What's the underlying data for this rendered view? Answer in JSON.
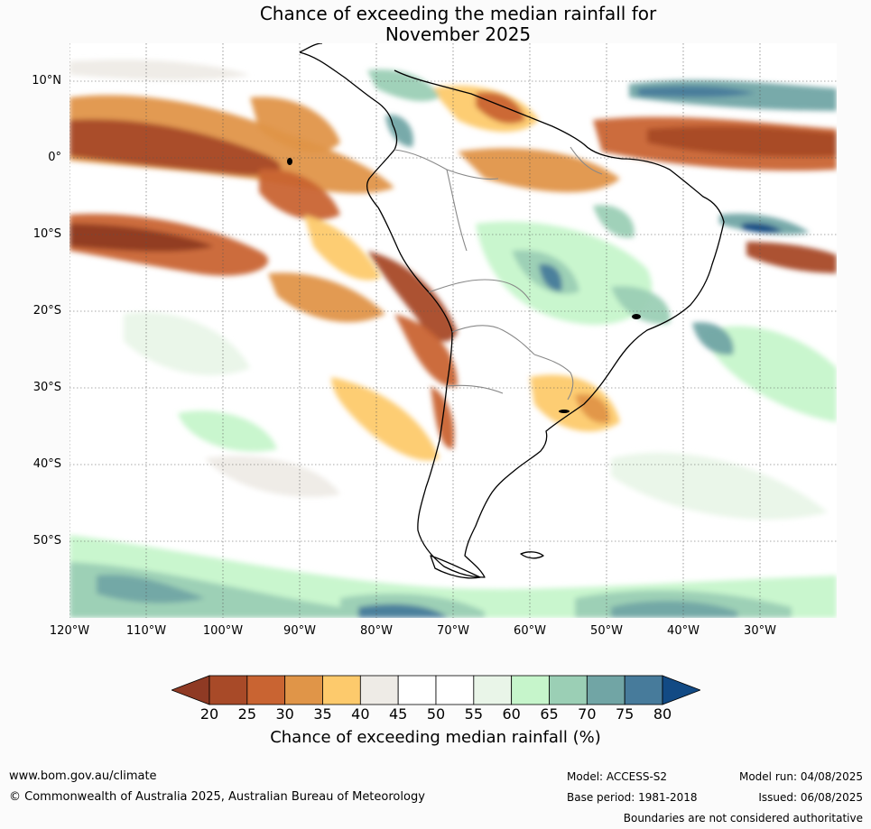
{
  "title": {
    "line1": "Chance of exceeding the median rainfall for",
    "line2": "November 2025"
  },
  "axes": {
    "lat_labels": [
      "10°N",
      "0°",
      "10°S",
      "20°S",
      "30°S",
      "40°S",
      "50°S"
    ],
    "lon_labels": [
      "120°W",
      "110°W",
      "100°W",
      "90°W",
      "80°W",
      "70°W",
      "60°W",
      "50°W",
      "40°W",
      "30°W"
    ],
    "extent": {
      "lon_min": -120,
      "lon_max": -20,
      "lat_min": -60,
      "lat_max": 15
    }
  },
  "legend": {
    "ticks": [
      "20",
      "25",
      "30",
      "35",
      "40",
      "45",
      "50",
      "55",
      "60",
      "65",
      "70",
      "75",
      "80"
    ],
    "colors": [
      "#8f3a24",
      "#a84a28",
      "#c96432",
      "#e09548",
      "#fdca6c",
      "#eeebe6",
      "#ffffff",
      "#ffffff",
      "#e9f5e8",
      "#c6f5cb",
      "#9bcfb5",
      "#71a5a5",
      "#477b9b",
      "#124a84"
    ],
    "label": "Chance of exceeding median rainfall (%)"
  },
  "footer": {
    "website": "www.bom.gov.au/climate",
    "copyright": "© Commonwealth of Australia 2025, Australian Bureau of Meteorology",
    "model": "Model: ACCESS-S2",
    "base_period": "Base period: 1981-2018",
    "model_run": "Model run: 04/08/2025",
    "issued": "Issued: 06/08/2025",
    "disclaimer": "Boundaries are not considered authoritative"
  }
}
